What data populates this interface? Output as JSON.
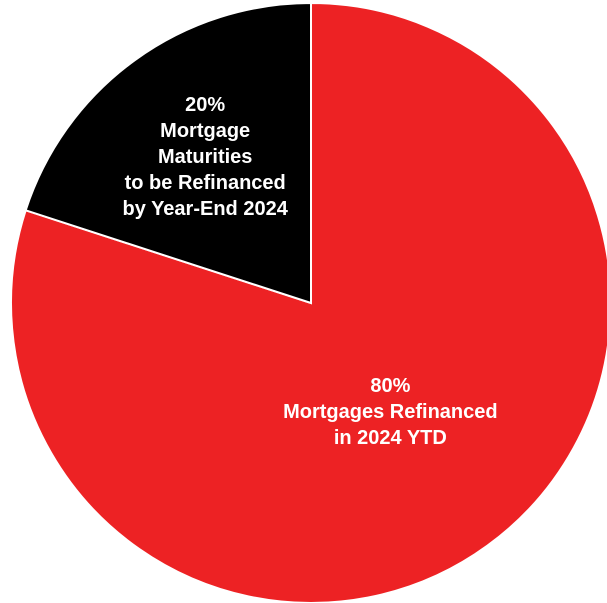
{
  "chart_data": {
    "type": "pie",
    "categories": [
      "Mortgages Refinanced\nin 2024 YTD",
      "Mortgage\nMaturities\nto be Refinanced\nby Year-End 2024"
    ],
    "values": [
      80,
      20
    ],
    "value_labels": [
      "80%",
      "20%"
    ],
    "colors": [
      "#ed2224",
      "#000000"
    ]
  }
}
